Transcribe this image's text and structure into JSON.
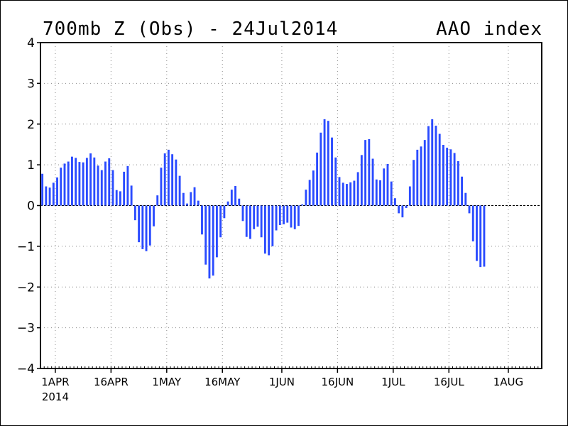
{
  "header": {
    "title_left": "700mb Z (Obs) - 24Jul2014",
    "title_right": "AAO index"
  },
  "colors": {
    "bar": "#2a4bff",
    "grid": "#888888",
    "axis": "#000000"
  },
  "chart_data": {
    "type": "bar",
    "title": "700mb Z (Obs) - 24Jul2014",
    "series": [
      {
        "name": "AAO index",
        "color": "#2a4bff"
      }
    ],
    "ylim": [
      -4,
      4
    ],
    "yticks": [
      {
        "value": 4,
        "label": "4"
      },
      {
        "value": 3,
        "label": "3"
      },
      {
        "value": 2,
        "label": "2"
      },
      {
        "value": 1,
        "label": "1"
      },
      {
        "value": 0,
        "label": "0"
      },
      {
        "value": -1,
        "label": "−1"
      },
      {
        "value": -2,
        "label": "−2"
      },
      {
        "value": -3,
        "label": "−3"
      },
      {
        "value": -4,
        "label": "−4"
      }
    ],
    "xlim": [
      "2014-03-28",
      "2014-08-10"
    ],
    "xticks": [
      {
        "date": "2014-04-01",
        "label": "1APR",
        "sublabel": "2014"
      },
      {
        "date": "2014-04-16",
        "label": "16APR"
      },
      {
        "date": "2014-05-01",
        "label": "1MAY"
      },
      {
        "date": "2014-05-16",
        "label": "16MAY"
      },
      {
        "date": "2014-06-01",
        "label": "1JUN"
      },
      {
        "date": "2014-06-16",
        "label": "16JUN"
      },
      {
        "date": "2014-07-01",
        "label": "1JUL"
      },
      {
        "date": "2014-07-16",
        "label": "16JUL"
      },
      {
        "date": "2014-08-01",
        "label": "1AUG"
      }
    ],
    "grid": true,
    "zero_line": "dashed",
    "start_date": "2014-03-28",
    "values": [
      0.78,
      0.47,
      0.44,
      0.56,
      0.69,
      0.93,
      1.03,
      1.08,
      1.2,
      1.17,
      1.07,
      1.06,
      1.17,
      1.28,
      1.18,
      0.98,
      0.87,
      1.08,
      1.16,
      0.87,
      0.38,
      0.35,
      0.83,
      0.97,
      0.49,
      -0.36,
      -0.9,
      -1.07,
      -1.12,
      -0.98,
      -0.51,
      0.25,
      0.93,
      1.28,
      1.37,
      1.26,
      1.13,
      0.73,
      0.31,
      0.05,
      0.33,
      0.45,
      0.12,
      -0.71,
      -1.45,
      -1.79,
      -1.72,
      -1.27,
      -0.78,
      -0.31,
      0.1,
      0.39,
      0.48,
      0.17,
      -0.38,
      -0.77,
      -0.82,
      -0.58,
      -0.52,
      -0.78,
      -1.18,
      -1.22,
      -1.0,
      -0.61,
      -0.48,
      -0.46,
      -0.42,
      -0.54,
      -0.58,
      -0.5,
      0.03,
      0.39,
      0.63,
      0.86,
      1.3,
      1.79,
      2.12,
      2.08,
      1.67,
      1.18,
      0.7,
      0.56,
      0.53,
      0.57,
      0.61,
      0.82,
      1.24,
      1.61,
      1.63,
      1.15,
      0.64,
      0.62,
      0.91,
      1.02,
      0.59,
      0.18,
      -0.19,
      -0.29,
      -0.06,
      0.47,
      1.12,
      1.37,
      1.45,
      1.61,
      1.95,
      2.12,
      1.96,
      1.76,
      1.49,
      1.42,
      1.38,
      1.29,
      1.09,
      0.71,
      0.31,
      -0.19,
      -0.88,
      -1.36,
      -1.51,
      -1.5
    ]
  }
}
